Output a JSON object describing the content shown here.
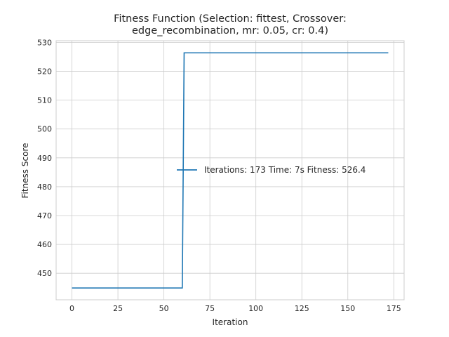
{
  "chart_data": {
    "type": "line",
    "title_lines": [
      "Fitness Function (Selection: fittest, Crossover:",
      "edge_recombination, mr: 0.05, cr: 0.4)"
    ],
    "xlabel": "Iteration",
    "ylabel": "Fitness Score",
    "xlim": [
      -8.6,
      180.6
    ],
    "ylim": [
      440.8,
      530.6
    ],
    "xticks": [
      0,
      25,
      50,
      75,
      100,
      125,
      150,
      175
    ],
    "yticks": [
      450,
      460,
      470,
      480,
      490,
      500,
      510,
      520,
      530
    ],
    "grid": true,
    "legend_position": "center-right",
    "colors": {
      "series": "#1f77b4",
      "grid": "#cccccc",
      "spine": "#cccccc"
    },
    "series": [
      {
        "name": "Iterations: 173 Time: 7s Fitness: 526.4",
        "x": [
          0,
          60,
          61,
          172
        ],
        "y": [
          444.9,
          444.9,
          526.4,
          526.4
        ]
      }
    ]
  }
}
